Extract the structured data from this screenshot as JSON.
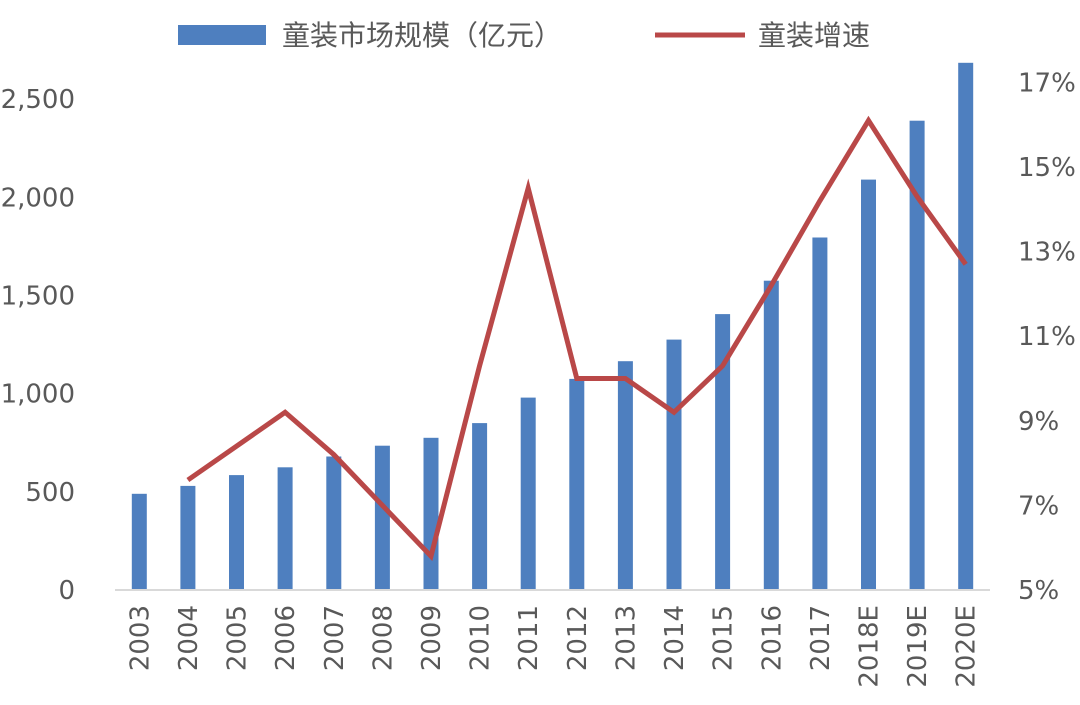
{
  "chart_data": {
    "type": "bar+line",
    "title": "",
    "categories": [
      "2003",
      "2004",
      "2005",
      "2006",
      "2007",
      "2008",
      "2009",
      "2010",
      "2011",
      "2012",
      "2013",
      "2014",
      "2015",
      "2016",
      "2017",
      "2018E",
      "2019E",
      "2020E"
    ],
    "series": [
      {
        "name": "童装市场规模（亿元）",
        "type": "bar",
        "axis": "left",
        "values": [
          490,
          530,
          585,
          625,
          680,
          735,
          775,
          850,
          980,
          1075,
          1165,
          1275,
          1405,
          1575,
          1795,
          2090,
          2390,
          2685
        ]
      },
      {
        "name": "童装增速",
        "type": "line",
        "axis": "right",
        "values": [
          null,
          7.6,
          8.4,
          9.2,
          8.2,
          7.0,
          5.8,
          10.3,
          14.5,
          10.0,
          10.0,
          9.2,
          10.3,
          12.2,
          14.2,
          16.1,
          14.3,
          12.7
        ]
      }
    ],
    "y_left": {
      "min": 0,
      "max": 2750,
      "ticks": [
        0,
        500,
        1000,
        1500,
        2000,
        2500
      ],
      "tick_labels": [
        "0",
        "500",
        "1,000",
        "1,500",
        "2,000",
        "2,500"
      ]
    },
    "y_right": {
      "min": 5,
      "max": 17,
      "ticks": [
        5,
        7,
        9,
        11,
        13,
        15,
        17
      ],
      "tick_labels": [
        "5%",
        "7%",
        "9%",
        "11%",
        "13%",
        "15%",
        "17%"
      ]
    },
    "legend": {
      "position": "top",
      "entries": [
        "童装市场规模（亿元）",
        "童装增速"
      ]
    },
    "grid": false
  },
  "colors": {
    "bar": "#4e7fbf",
    "line": "#b94848",
    "axis": "#d9d9d9",
    "text": "#595959"
  }
}
